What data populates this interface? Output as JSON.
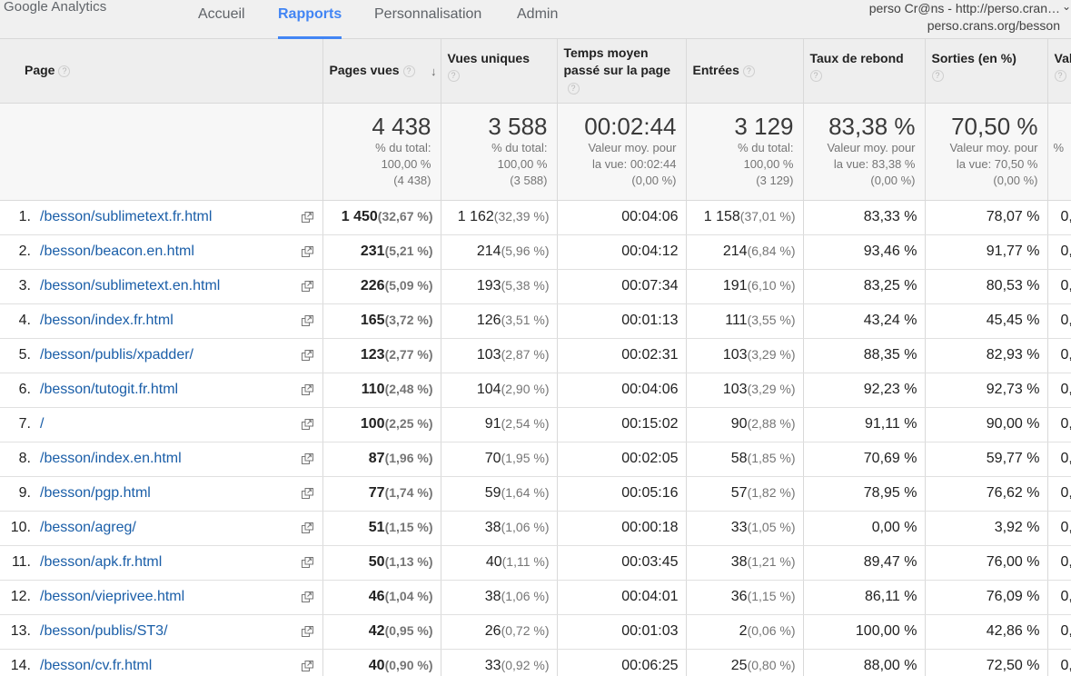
{
  "header": {
    "logo": "Google Analytics",
    "nav": [
      {
        "label": "Accueil",
        "active": false
      },
      {
        "label": "Rapports",
        "active": true
      },
      {
        "label": "Personnalisation",
        "active": false
      },
      {
        "label": "Admin",
        "active": false
      }
    ],
    "account_line1": "perso Cr@ns - http://perso.cran…",
    "account_line2": "perso.crans.org/besson"
  },
  "table": {
    "columns": {
      "page": "Page",
      "pageviews": "Pages vues",
      "unique": "Vues uniques",
      "time": "Temps moyen passé sur la page",
      "entries": "Entrées",
      "bounce": "Taux de rebond",
      "exits": "Sorties (en %)",
      "value": "Val"
    },
    "summary": {
      "pageviews": {
        "big": "4 438",
        "l1": "% du total:",
        "l2": "100,00 %",
        "l3": "(4 438)"
      },
      "unique": {
        "big": "3 588",
        "l1": "% du total:",
        "l2": "100,00 %",
        "l3": "(3 588)"
      },
      "time": {
        "big": "00:02:44",
        "l1": "Valeur moy. pour",
        "l2": "la vue: 00:02:44",
        "l3": "(0,00 %)"
      },
      "entries": {
        "big": "3 129",
        "l1": "% du total:",
        "l2": "100,00 %",
        "l3": "(3 129)"
      },
      "bounce": {
        "big": "83,38 %",
        "l1": "Valeur moy. pour",
        "l2": "la vue: 83,38 %",
        "l3": "(0,00 %)"
      },
      "exits": {
        "big": "70,50 %",
        "l1": "Valeur moy. pour",
        "l2": "la vue: 70,50 %",
        "l3": "(0,00 %)"
      },
      "value": {
        "l1": "%"
      }
    },
    "rows": [
      {
        "num": "1.",
        "page": "/besson/sublimetext.fr.html",
        "pv": "1 450",
        "pv_pct": "(32,67 %)",
        "uv": "1 162",
        "uv_pct": "(32,39 %)",
        "time": "00:04:06",
        "ent": "1 158",
        "ent_pct": "(37,01 %)",
        "bounce": "83,33 %",
        "exit": "78,07 %",
        "val": "0,"
      },
      {
        "num": "2.",
        "page": "/besson/beacon.en.html",
        "pv": "231",
        "pv_pct": "(5,21 %)",
        "uv": "214",
        "uv_pct": "(5,96 %)",
        "time": "00:04:12",
        "ent": "214",
        "ent_pct": "(6,84 %)",
        "bounce": "93,46 %",
        "exit": "91,77 %",
        "val": "0,"
      },
      {
        "num": "3.",
        "page": "/besson/sublimetext.en.html",
        "pv": "226",
        "pv_pct": "(5,09 %)",
        "uv": "193",
        "uv_pct": "(5,38 %)",
        "time": "00:07:34",
        "ent": "191",
        "ent_pct": "(6,10 %)",
        "bounce": "83,25 %",
        "exit": "80,53 %",
        "val": "0,"
      },
      {
        "num": "4.",
        "page": "/besson/index.fr.html",
        "pv": "165",
        "pv_pct": "(3,72 %)",
        "uv": "126",
        "uv_pct": "(3,51 %)",
        "time": "00:01:13",
        "ent": "111",
        "ent_pct": "(3,55 %)",
        "bounce": "43,24 %",
        "exit": "45,45 %",
        "val": "0,"
      },
      {
        "num": "5.",
        "page": "/besson/publis/xpadder/",
        "pv": "123",
        "pv_pct": "(2,77 %)",
        "uv": "103",
        "uv_pct": "(2,87 %)",
        "time": "00:02:31",
        "ent": "103",
        "ent_pct": "(3,29 %)",
        "bounce": "88,35 %",
        "exit": "82,93 %",
        "val": "0,"
      },
      {
        "num": "6.",
        "page": "/besson/tutogit.fr.html",
        "pv": "110",
        "pv_pct": "(2,48 %)",
        "uv": "104",
        "uv_pct": "(2,90 %)",
        "time": "00:04:06",
        "ent": "103",
        "ent_pct": "(3,29 %)",
        "bounce": "92,23 %",
        "exit": "92,73 %",
        "val": "0,"
      },
      {
        "num": "7.",
        "page": "/",
        "pv": "100",
        "pv_pct": "(2,25 %)",
        "uv": "91",
        "uv_pct": "(2,54 %)",
        "time": "00:15:02",
        "ent": "90",
        "ent_pct": "(2,88 %)",
        "bounce": "91,11 %",
        "exit": "90,00 %",
        "val": "0,"
      },
      {
        "num": "8.",
        "page": "/besson/index.en.html",
        "pv": "87",
        "pv_pct": "(1,96 %)",
        "uv": "70",
        "uv_pct": "(1,95 %)",
        "time": "00:02:05",
        "ent": "58",
        "ent_pct": "(1,85 %)",
        "bounce": "70,69 %",
        "exit": "59,77 %",
        "val": "0,"
      },
      {
        "num": "9.",
        "page": "/besson/pgp.html",
        "pv": "77",
        "pv_pct": "(1,74 %)",
        "uv": "59",
        "uv_pct": "(1,64 %)",
        "time": "00:05:16",
        "ent": "57",
        "ent_pct": "(1,82 %)",
        "bounce": "78,95 %",
        "exit": "76,62 %",
        "val": "0,"
      },
      {
        "num": "10.",
        "page": "/besson/agreg/",
        "pv": "51",
        "pv_pct": "(1,15 %)",
        "uv": "38",
        "uv_pct": "(1,06 %)",
        "time": "00:00:18",
        "ent": "33",
        "ent_pct": "(1,05 %)",
        "bounce": "0,00 %",
        "exit": "3,92 %",
        "val": "0,"
      },
      {
        "num": "11.",
        "page": "/besson/apk.fr.html",
        "pv": "50",
        "pv_pct": "(1,13 %)",
        "uv": "40",
        "uv_pct": "(1,11 %)",
        "time": "00:03:45",
        "ent": "38",
        "ent_pct": "(1,21 %)",
        "bounce": "89,47 %",
        "exit": "76,00 %",
        "val": "0,"
      },
      {
        "num": "12.",
        "page": "/besson/vieprivee.html",
        "pv": "46",
        "pv_pct": "(1,04 %)",
        "uv": "38",
        "uv_pct": "(1,06 %)",
        "time": "00:04:01",
        "ent": "36",
        "ent_pct": "(1,15 %)",
        "bounce": "86,11 %",
        "exit": "76,09 %",
        "val": "0,"
      },
      {
        "num": "13.",
        "page": "/besson/publis/ST3/",
        "pv": "42",
        "pv_pct": "(0,95 %)",
        "uv": "26",
        "uv_pct": "(0,72 %)",
        "time": "00:01:03",
        "ent": "2",
        "ent_pct": "(0,06 %)",
        "bounce": "100,00 %",
        "exit": "42,86 %",
        "val": "0,"
      },
      {
        "num": "14.",
        "page": "/besson/cv.fr.html",
        "pv": "40",
        "pv_pct": "(0,90 %)",
        "uv": "33",
        "uv_pct": "(0,92 %)",
        "time": "00:06:25",
        "ent": "25",
        "ent_pct": "(0,80 %)",
        "bounce": "88,00 %",
        "exit": "72,50 %",
        "val": "0,"
      }
    ]
  }
}
